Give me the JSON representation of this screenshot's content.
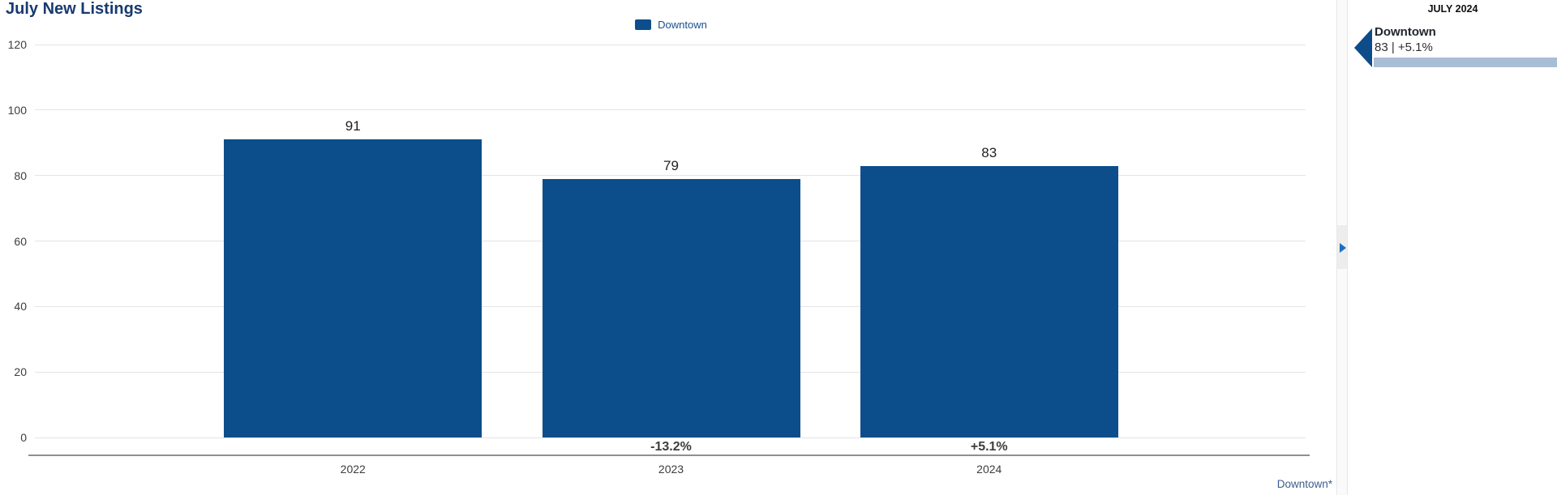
{
  "chart": {
    "title": "July New Listings",
    "footnote": "Downtown*"
  },
  "chart_data": {
    "type": "bar",
    "title": "July New Listings",
    "categories": [
      "2022",
      "2023",
      "2024"
    ],
    "series": [
      {
        "name": "Downtown",
        "values": [
          91,
          79,
          83
        ],
        "color": "#0b4e8b"
      }
    ],
    "value_labels": [
      "91",
      "79",
      "83"
    ],
    "pct_change_labels": [
      "",
      "-13.2%",
      "+5.1%"
    ],
    "y_ticks": [
      0,
      20,
      40,
      60,
      80,
      100,
      120
    ],
    "ylim": [
      0,
      120
    ],
    "xlabel": "",
    "ylabel": "",
    "grid": true,
    "legend_position": "top-center",
    "legend_entries": [
      "Downtown"
    ]
  },
  "splitter": {
    "expand_icon": "right-triangle"
  },
  "side_panel": {
    "title": "JULY 2024",
    "entries": [
      {
        "name": "Downtown",
        "value_text": "83 | +5.1%",
        "marker_color": "#0d4c89",
        "bar_color": "#a9bed6"
      }
    ]
  }
}
